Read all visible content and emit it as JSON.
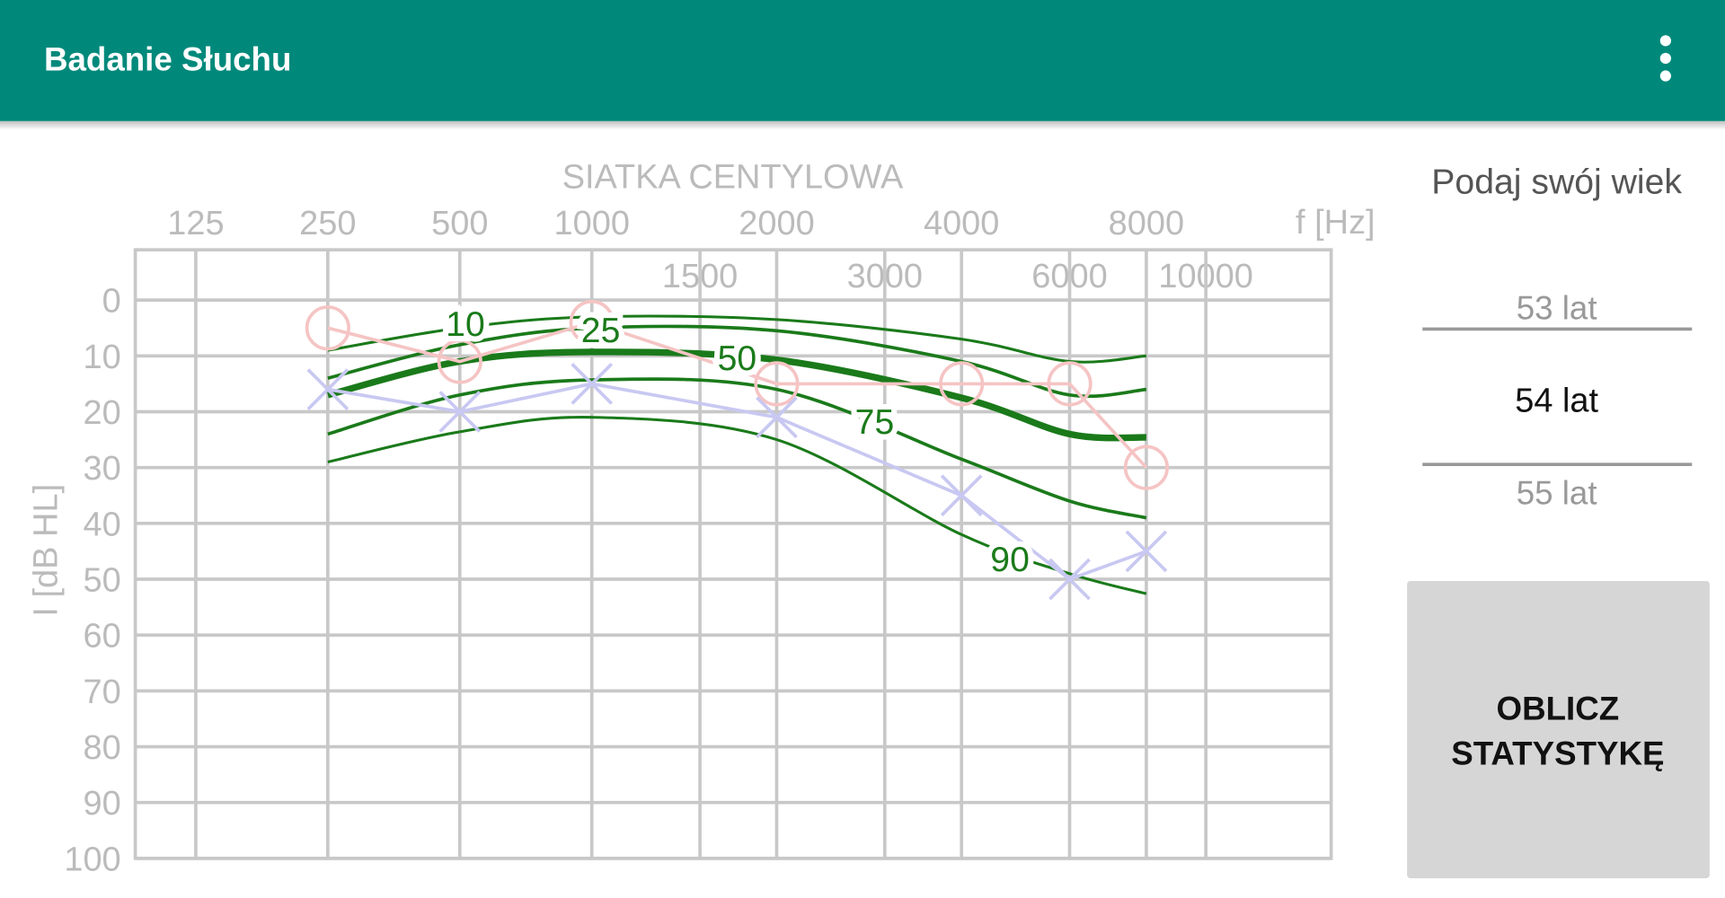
{
  "app_bar": {
    "title": "Badanie Słuchu"
  },
  "chart_data": {
    "type": "line",
    "title": "SIATKA CENTYLOWA",
    "x_label": "f [Hz]",
    "y_label": "I [dB HL]",
    "x": [
      250,
      500,
      1000,
      2000,
      4000,
      6000,
      8000
    ],
    "xlim": [
      91,
      16000
    ],
    "xticks": [
      125,
      250,
      500,
      1000,
      1500,
      2000,
      3000,
      4000,
      6000,
      8000,
      10000
    ],
    "log_x": true,
    "ylim": [
      -9,
      100
    ],
    "y_inverted": true,
    "yticks": [
      0,
      10,
      20,
      30,
      40,
      50,
      60,
      70,
      80,
      90,
      100
    ],
    "grid": true,
    "series": [
      {
        "name": "10",
        "color": "#1a7a1a",
        "width": 2.5,
        "values": [
          9,
          5,
          3,
          3.5,
          7,
          11,
          10
        ]
      },
      {
        "name": "25",
        "color": "#1a7a1a",
        "width": 3,
        "values": [
          14,
          8,
          5,
          5.5,
          11,
          17,
          16
        ]
      },
      {
        "name": "50",
        "color": "#1a7a1a",
        "width": 6,
        "values": [
          17,
          11,
          9.3,
          10.7,
          17.5,
          24,
          24.6
        ]
      },
      {
        "name": "75",
        "color": "#1a7a1a",
        "width": 3,
        "values": [
          24,
          17,
          14.3,
          16,
          28.5,
          36,
          39
        ]
      },
      {
        "name": "90",
        "color": "#1a7a1a",
        "width": 2.5,
        "values": [
          29,
          23.6,
          21,
          25,
          42,
          49,
          52.6
        ]
      },
      {
        "color": "#f5c4c4",
        "marker": "circle",
        "values": [
          5,
          11,
          4,
          15,
          15,
          15,
          30
        ]
      },
      {
        "color": "#c8c8f2",
        "marker": "x",
        "values": [
          16,
          20,
          15,
          21,
          35,
          50,
          45
        ]
      }
    ]
  },
  "age_picker": {
    "label": "Podaj swój wiek",
    "options": [
      "53 lat",
      "54 lat",
      "55 lat"
    ]
  },
  "button": {
    "lines": [
      "OBLICZ",
      "STATYSTYKĘ"
    ]
  }
}
